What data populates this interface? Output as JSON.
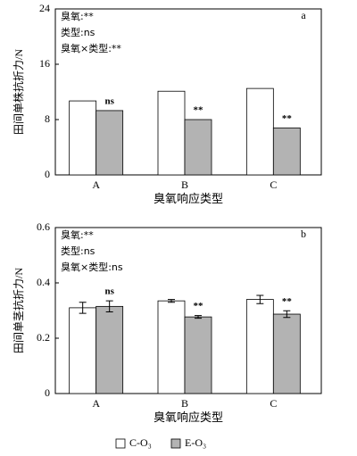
{
  "chart_data": [
    {
      "type": "bar",
      "panel": "a",
      "annotations": [
        "臭氧:**",
        "类型:ns",
        "臭氧×类型:**"
      ],
      "ylabel": "田间单株抗折力/N",
      "xlabel": "臭氧响应类型",
      "categories": [
        "A",
        "B",
        "C"
      ],
      "series": [
        {
          "color": "#ffffff",
          "values": [
            10.7,
            12.1,
            12.5
          ]
        },
        {
          "color": "#b3b3b3",
          "values": [
            9.3,
            8.0,
            6.8
          ],
          "sig_labels": [
            "ns",
            "**",
            "**"
          ]
        }
      ],
      "ylim": [
        0,
        24
      ],
      "yticks": [
        0,
        8,
        16,
        24
      ]
    },
    {
      "type": "bar",
      "panel": "b",
      "annotations": [
        "臭氧:**",
        "类型:ns",
        "臭氧×类型:ns"
      ],
      "ylabel": "田间单茎抗折力/N",
      "xlabel": "臭氧响应类型",
      "categories": [
        "A",
        "B",
        "C"
      ],
      "series": [
        {
          "name": "C-O₃",
          "color": "#ffffff",
          "values": [
            0.31,
            0.335,
            0.34
          ],
          "errors": [
            0.02,
            0.005,
            0.015
          ]
        },
        {
          "name": "E-O₃",
          "color": "#b3b3b3",
          "values": [
            0.315,
            0.277,
            0.287
          ],
          "errors": [
            0.02,
            0.005,
            0.012
          ],
          "sig_labels": [
            "ns",
            "**",
            "**"
          ]
        }
      ],
      "ylim": [
        0,
        0.6
      ],
      "yticks": [
        0,
        0.2,
        0.4,
        0.6
      ]
    }
  ]
}
